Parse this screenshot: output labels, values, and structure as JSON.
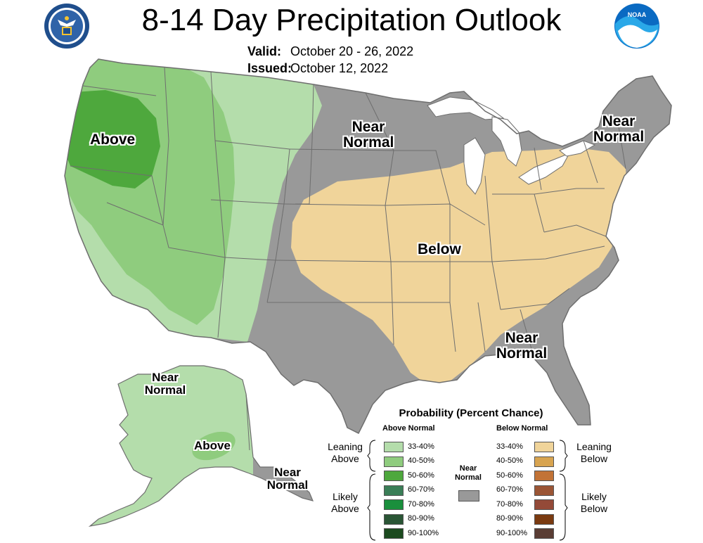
{
  "header": {
    "title": "8-14 Day Precipitation Outlook",
    "valid_label": "Valid:",
    "valid_value": "October 20 - 26, 2022",
    "issued_label": "Issued:",
    "issued_value": "October 12, 2022",
    "left_logo_icon": "department-of-commerce-seal-icon",
    "right_logo_icon": "noaa-logo-icon"
  },
  "map_labels": {
    "above_west": "Above",
    "near_normal_north_1": "Near",
    "near_normal_north_2": "Normal",
    "near_normal_northeast_1": "Near",
    "near_normal_northeast_2": "Normal",
    "below_central": "Below",
    "near_normal_southeast_1": "Near",
    "near_normal_southeast_2": "Normal",
    "alaska_near_normal_1": "Near",
    "alaska_near_normal_2": "Normal",
    "alaska_above": "Above",
    "alaska_se_near_normal_1": "Near",
    "alaska_se_near_normal_2": "Normal"
  },
  "legend": {
    "title": "Probability (Percent Chance)",
    "above_header": "Above Normal",
    "below_header": "Below Normal",
    "near_normal_1": "Near",
    "near_normal_2": "Normal",
    "near_normal_color": "#999999",
    "leaning_above_1": "Leaning",
    "leaning_above_2": "Above",
    "likely_above_1": "Likely",
    "likely_above_2": "Above",
    "leaning_below_1": "Leaning",
    "leaning_below_2": "Below",
    "likely_below_1": "Likely",
    "likely_below_2": "Below",
    "above": [
      {
        "label": "33-40%",
        "color": "#b4ddab"
      },
      {
        "label": "40-50%",
        "color": "#8fcc7e"
      },
      {
        "label": "50-60%",
        "color": "#4ea83d"
      },
      {
        "label": "60-70%",
        "color": "#3a7e57"
      },
      {
        "label": "70-80%",
        "color": "#1a8f3c"
      },
      {
        "label": "80-90%",
        "color": "#2a5535"
      },
      {
        "label": "90-100%",
        "color": "#1b4a1e"
      }
    ],
    "below": [
      {
        "label": "33-40%",
        "color": "#f0d49a"
      },
      {
        "label": "40-50%",
        "color": "#d8a450"
      },
      {
        "label": "50-60%",
        "color": "#c27336"
      },
      {
        "label": "60-70%",
        "color": "#9b5535"
      },
      {
        "label": "70-80%",
        "color": "#944a38"
      },
      {
        "label": "80-90%",
        "color": "#7a3a10"
      },
      {
        "label": "90-100%",
        "color": "#5a3d34"
      }
    ]
  },
  "colors": {
    "leaning_above": "#b4ddab",
    "above_40_50": "#8fcc7e",
    "above_50_60": "#4ea83d",
    "near_normal": "#999999",
    "leaning_below": "#f0d49a",
    "borders": "#6e6e6e"
  }
}
